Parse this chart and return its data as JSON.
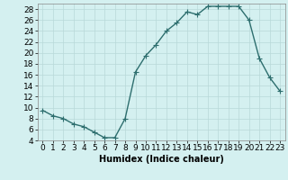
{
  "x": [
    0,
    1,
    2,
    3,
    4,
    5,
    6,
    7,
    8,
    9,
    10,
    11,
    12,
    13,
    14,
    15,
    16,
    17,
    18,
    19,
    20,
    21,
    22,
    23
  ],
  "y": [
    9.5,
    8.5,
    8.0,
    7.0,
    6.5,
    5.5,
    4.5,
    4.5,
    8.0,
    16.5,
    19.5,
    21.5,
    24.0,
    25.5,
    27.5,
    27.0,
    28.5,
    28.5,
    28.5,
    28.5,
    26.0,
    19.0,
    15.5,
    13.0
  ],
  "line_color": "#2d6e6e",
  "marker": "+",
  "markersize": 4,
  "linewidth": 1.0,
  "xlabel": "Humidex (Indice chaleur)",
  "xlabel_fontsize": 7,
  "xlabel_bold": true,
  "bg_color": "#d4f0f0",
  "grid_color": "#b8d8d8",
  "xlim": [
    -0.5,
    23.5
  ],
  "ylim": [
    4,
    29
  ],
  "yticks": [
    4,
    6,
    8,
    10,
    12,
    14,
    16,
    18,
    20,
    22,
    24,
    26,
    28
  ],
  "xticks": [
    0,
    1,
    2,
    3,
    4,
    5,
    6,
    7,
    8,
    9,
    10,
    11,
    12,
    13,
    14,
    15,
    16,
    17,
    18,
    19,
    20,
    21,
    22,
    23
  ],
  "tick_fontsize": 6.5
}
